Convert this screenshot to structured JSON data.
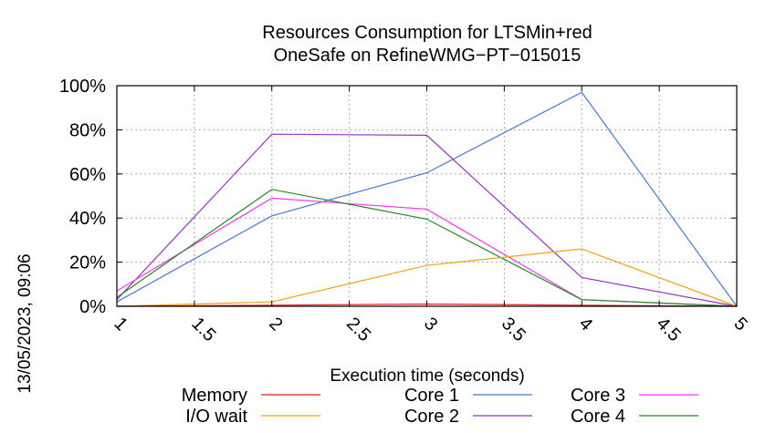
{
  "chart_data": {
    "type": "line",
    "title": "Resources Consumption for LTSMin+red",
    "subtitle": "OneSafe on RefineWMG−PT−015015",
    "xlabel": "Execution time (seconds)",
    "ylabel": "",
    "side_label": "13/05/2023, 09:06",
    "xlim": [
      1,
      5
    ],
    "ylim": [
      0,
      100
    ],
    "x_ticks": [
      "1",
      "1.5",
      "2",
      "2.5",
      "3",
      "3.5",
      "4",
      "4.5",
      "5"
    ],
    "x_tick_values": [
      1,
      1.5,
      2,
      2.5,
      3,
      3.5,
      4,
      4.5,
      5
    ],
    "y_ticks": [
      "0%",
      "20%",
      "40%",
      "60%",
      "80%",
      "100%"
    ],
    "y_tick_values": [
      0,
      20,
      40,
      60,
      80,
      100
    ],
    "grid": true,
    "legend_position": "bottom",
    "x": [
      1,
      2,
      3,
      4,
      5
    ],
    "series": [
      {
        "name": "Memory",
        "color": "#e41a1c",
        "values": [
          0,
          0.5,
          1,
          0.5,
          0
        ]
      },
      {
        "name": "I/O wait",
        "color": "#f0a30a",
        "values": [
          0,
          2,
          18.5,
          26,
          0
        ]
      },
      {
        "name": "Core 1",
        "color": "#4a78d6",
        "values": [
          2,
          41,
          60.5,
          97,
          0
        ]
      },
      {
        "name": "Core 2",
        "color": "#9932cc",
        "values": [
          3,
          78,
          77.5,
          13,
          0
        ]
      },
      {
        "name": "Core 3",
        "color": "#ff33ff",
        "values": [
          7,
          49,
          44,
          3,
          0
        ]
      },
      {
        "name": "Core 4",
        "color": "#228b22",
        "values": [
          4,
          53,
          39.5,
          3,
          0
        ]
      }
    ]
  }
}
